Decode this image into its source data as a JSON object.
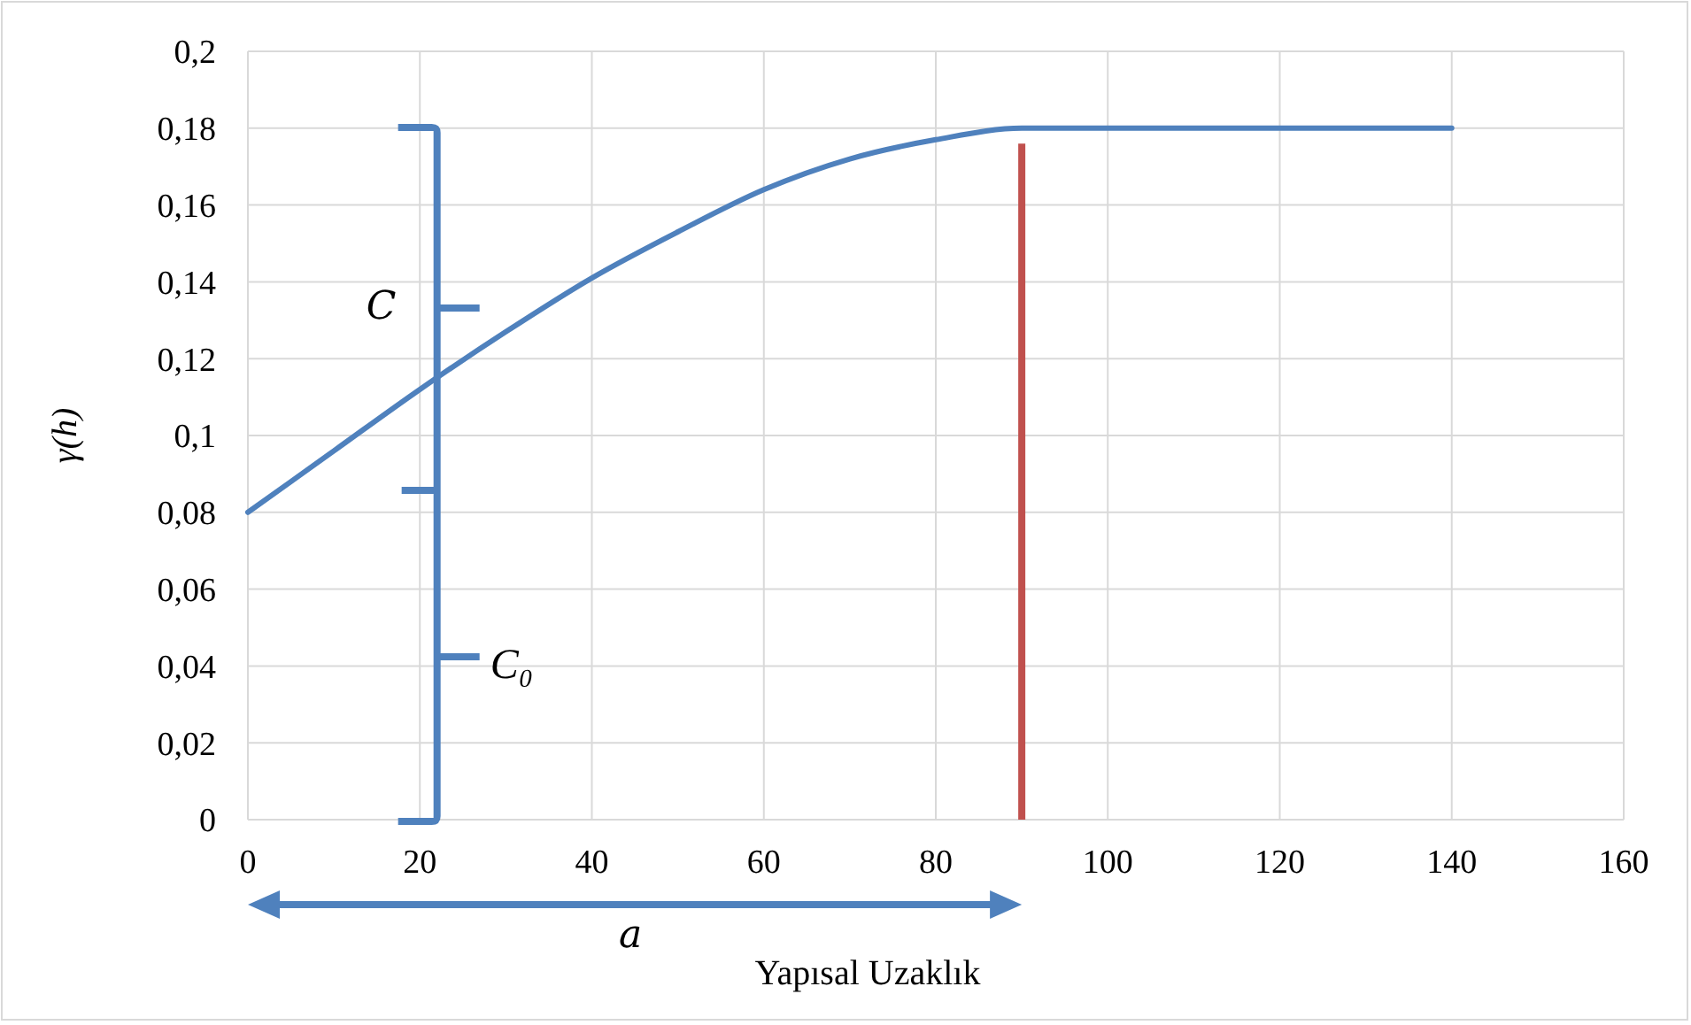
{
  "chart_data": {
    "type": "line",
    "xlabel": "Yapısal Uzaklık",
    "ylabel": "γ(h)",
    "x": [
      0,
      10,
      20,
      30,
      40,
      50,
      60,
      70,
      80,
      90,
      100,
      110,
      120,
      130,
      140
    ],
    "series": [
      {
        "color": "#4f81bd",
        "values": [
          0.08,
          0.096,
          0.112,
          0.127,
          0.141,
          0.153,
          0.164,
          0.172,
          0.177,
          0.18,
          0.18,
          0.18,
          0.18,
          0.18,
          0.18
        ]
      }
    ],
    "xlim": [
      0,
      160
    ],
    "xticks": [
      0,
      20,
      40,
      60,
      80,
      100,
      120,
      140,
      160
    ],
    "ylim": [
      0,
      0.2
    ],
    "yticks": [
      0,
      {
        "value": 0.02,
        "label": "0,02"
      },
      {
        "value": 0.04,
        "label": "0,04"
      },
      {
        "value": 0.06,
        "label": "0,06"
      },
      {
        "value": 0.08,
        "label": "0,08"
      },
      {
        "value": 0.1,
        "label": "0,1"
      },
      {
        "value": 0.12,
        "label": "0,12"
      },
      {
        "value": 0.14,
        "label": "0,14"
      },
      {
        "value": 0.16,
        "label": "0,16"
      },
      {
        "value": 0.18,
        "label": "0,18"
      },
      {
        "value": 0.2,
        "label": "0,2"
      }
    ],
    "grid": true,
    "marker": "none",
    "line_style": "solid",
    "ref_lines": [
      {
        "axis": "x",
        "value": 90,
        "label": null,
        "color": "#c0504d"
      }
    ],
    "annotations": [
      "C",
      "C₀",
      "a"
    ]
  }
}
